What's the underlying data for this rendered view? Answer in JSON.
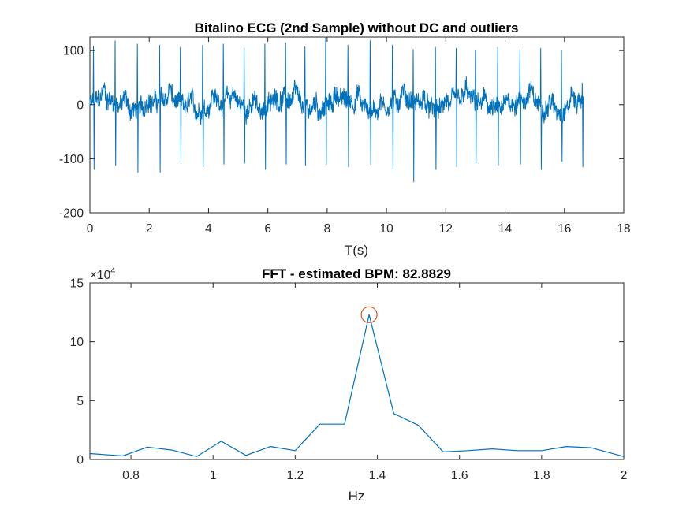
{
  "chart_data": [
    {
      "type": "line",
      "title": "Bitalino ECG (2nd Sample) without DC and outliers",
      "xlabel": "T(s)",
      "ylabel": "",
      "xlim": [
        0,
        18
      ],
      "ylim": [
        -200,
        125
      ],
      "xticks": [
        0,
        2,
        4,
        6,
        8,
        10,
        12,
        14,
        16,
        18
      ],
      "yticks": [
        -200,
        -100,
        0,
        100
      ],
      "xtick_labels": [
        "0",
        "2",
        "4",
        "6",
        "8",
        "10",
        "12",
        "14",
        "16",
        "18"
      ],
      "ytick_labels": [
        "-200",
        "-100",
        "0",
        "100"
      ],
      "grid": false,
      "signal_end": 16.65,
      "series": [
        {
          "color": "#0072BD",
          "r_peaks": [
            {
              "t": 0.12,
              "max": 108,
              "min": -120
            },
            {
              "t": 0.85,
              "max": 118,
              "min": -112
            },
            {
              "t": 1.6,
              "max": 112,
              "min": -125
            },
            {
              "t": 2.35,
              "max": 110,
              "min": -125
            },
            {
              "t": 3.05,
              "max": 106,
              "min": -105
            },
            {
              "t": 3.8,
              "max": 110,
              "min": -115
            },
            {
              "t": 4.5,
              "max": 112,
              "min": -110
            },
            {
              "t": 5.2,
              "max": 104,
              "min": -108
            },
            {
              "t": 5.9,
              "max": 112,
              "min": -120
            },
            {
              "t": 6.6,
              "max": 114,
              "min": -110
            },
            {
              "t": 7.25,
              "max": 107,
              "min": -112
            },
            {
              "t": 7.95,
              "max": 125,
              "min": -110
            },
            {
              "t": 8.7,
              "max": 110,
              "min": -115
            },
            {
              "t": 9.45,
              "max": 118,
              "min": -110
            },
            {
              "t": 10.2,
              "max": 110,
              "min": -120
            },
            {
              "t": 10.9,
              "max": 102,
              "min": -143
            },
            {
              "t": 11.65,
              "max": 106,
              "min": -120
            },
            {
              "t": 12.35,
              "max": 104,
              "min": -115
            },
            {
              "t": 13.0,
              "max": 100,
              "min": -108
            },
            {
              "t": 13.75,
              "max": 106,
              "min": -112
            },
            {
              "t": 14.5,
              "max": 102,
              "min": -110
            },
            {
              "t": 15.2,
              "max": 104,
              "min": -120
            },
            {
              "t": 15.9,
              "max": 100,
              "min": -105
            },
            {
              "t": 16.6,
              "max": 40,
              "min": -115
            }
          ]
        }
      ]
    },
    {
      "type": "line",
      "title": "FFT - estimated BPM: 82.8829",
      "xlabel": "Hz",
      "ylabel": "",
      "xlim": [
        0.7,
        2.0
      ],
      "ylim": [
        0,
        150000
      ],
      "xticks": [
        0.8,
        1.0,
        1.2,
        1.4,
        1.6,
        1.8,
        2.0
      ],
      "yticks": [
        0,
        50000,
        100000,
        150000
      ],
      "xtick_labels": [
        "0.8",
        "1",
        "1.2",
        "1.4",
        "1.6",
        "1.8",
        "2"
      ],
      "ytick_labels": [
        "0",
        "5",
        "10",
        "15"
      ],
      "y_exponent_label": "×10",
      "y_exponent_power": "4",
      "grid": false,
      "series": [
        {
          "color": "#0072BD",
          "x": [
            0.7,
            0.78,
            0.84,
            0.9,
            0.96,
            1.02,
            1.08,
            1.14,
            1.2,
            1.26,
            1.32,
            1.38,
            1.44,
            1.5,
            1.56,
            1.62,
            1.68,
            1.74,
            1.8,
            1.86,
            1.92,
            2.0
          ],
          "y": [
            5000,
            3000,
            10500,
            8000,
            2500,
            15500,
            3500,
            11000,
            7500,
            30000,
            30000,
            123000,
            39000,
            29000,
            6500,
            7500,
            9000,
            7500,
            7500,
            11000,
            10000,
            2500
          ]
        }
      ],
      "marker": {
        "x": 1.38,
        "y": 123000,
        "shape": "circle",
        "color": "#D95319"
      }
    }
  ]
}
